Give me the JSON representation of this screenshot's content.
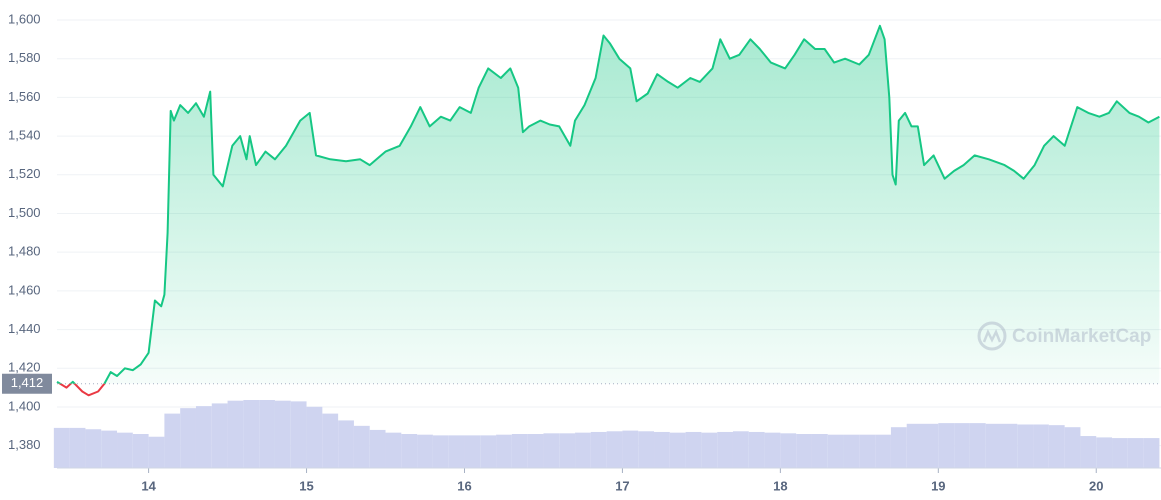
{
  "chart_data": {
    "type": "line",
    "watermark": "CoinMarketCap",
    "x": [
      13.42,
      13.48,
      13.52,
      13.58,
      13.62,
      13.68,
      13.72,
      13.76,
      13.8,
      13.85,
      13.9,
      13.95,
      14.0,
      14.04,
      14.08,
      14.1,
      14.12,
      14.14,
      14.16,
      14.2,
      14.25,
      14.3,
      14.35,
      14.39,
      14.41,
      14.47,
      14.53,
      14.58,
      14.62,
      14.64,
      14.68,
      14.74,
      14.8,
      14.87,
      14.96,
      15.02,
      15.06,
      15.15,
      15.25,
      15.34,
      15.4,
      15.5,
      15.59,
      15.66,
      15.72,
      15.78,
      15.85,
      15.91,
      15.97,
      16.04,
      16.09,
      16.15,
      16.23,
      16.29,
      16.34,
      16.37,
      16.41,
      16.48,
      16.54,
      16.6,
      16.67,
      16.7,
      16.76,
      16.83,
      16.88,
      16.92,
      16.98,
      17.05,
      17.09,
      17.16,
      17.22,
      17.29,
      17.35,
      17.43,
      17.49,
      17.57,
      17.62,
      17.68,
      17.74,
      17.81,
      17.87,
      17.94,
      18.03,
      18.09,
      18.15,
      18.22,
      18.28,
      18.34,
      18.41,
      18.5,
      18.56,
      18.63,
      18.66,
      18.69,
      18.71,
      18.73,
      18.75,
      18.79,
      18.83,
      18.87,
      18.91,
      18.97,
      19.04,
      19.1,
      19.16,
      19.23,
      19.32,
      19.42,
      19.48,
      19.54,
      19.61,
      19.67,
      19.73,
      19.8,
      19.88,
      19.95,
      20.02,
      20.08,
      20.13,
      20.21,
      20.27,
      20.33,
      20.4
    ],
    "series": [
      {
        "color": "#16c784",
        "below_color": "#ea3943",
        "values": [
          1413,
          1410,
          1413,
          1408,
          1406,
          1408,
          1412,
          1418,
          1416,
          1420,
          1419,
          1422,
          1428,
          1455,
          1452,
          1458,
          1490,
          1553,
          1548,
          1556,
          1552,
          1557,
          1550,
          1563,
          1520,
          1514,
          1535,
          1540,
          1528,
          1540,
          1525,
          1532,
          1528,
          1535,
          1548,
          1552,
          1530,
          1528,
          1527,
          1528,
          1525,
          1532,
          1535,
          1545,
          1555,
          1545,
          1550,
          1548,
          1555,
          1552,
          1565,
          1575,
          1570,
          1575,
          1565,
          1542,
          1545,
          1548,
          1546,
          1545,
          1535,
          1548,
          1556,
          1570,
          1592,
          1588,
          1580,
          1575,
          1558,
          1562,
          1572,
          1568,
          1565,
          1570,
          1568,
          1575,
          1590,
          1580,
          1582,
          1590,
          1585,
          1578,
          1575,
          1582,
          1590,
          1585,
          1585,
          1578,
          1580,
          1577,
          1582,
          1597,
          1590,
          1560,
          1520,
          1515,
          1548,
          1552,
          1545,
          1545,
          1525,
          1530,
          1518,
          1522,
          1525,
          1530,
          1528,
          1525,
          1522,
          1518,
          1525,
          1535,
          1540,
          1535,
          1555,
          1552,
          1550,
          1552,
          1558,
          1552,
          1550,
          1547,
          1550
        ]
      }
    ],
    "baseline": 1412,
    "baseline_label": "1,412",
    "volume": {
      "color": "#cfd4f0",
      "x": [
        13.45,
        13.55,
        13.65,
        13.75,
        13.85,
        13.95,
        14.05,
        14.15,
        14.25,
        14.35,
        14.45,
        14.55,
        14.65,
        14.75,
        14.85,
        14.95,
        15.05,
        15.15,
        15.25,
        15.35,
        15.45,
        15.55,
        15.65,
        15.75,
        15.85,
        15.95,
        16.05,
        16.15,
        16.25,
        16.35,
        16.45,
        16.55,
        16.65,
        16.75,
        16.85,
        16.95,
        17.05,
        17.15,
        17.25,
        17.35,
        17.45,
        17.55,
        17.65,
        17.75,
        17.85,
        17.95,
        18.05,
        18.15,
        18.25,
        18.35,
        18.45,
        18.55,
        18.65,
        18.75,
        18.85,
        18.95,
        19.05,
        19.15,
        19.25,
        19.35,
        19.45,
        19.55,
        19.65,
        19.75,
        19.85,
        19.95,
        20.05,
        20.15,
        20.25,
        20.35
      ],
      "values": [
        59,
        59,
        57,
        55,
        52,
        50,
        46,
        80,
        88,
        91,
        95,
        99,
        100,
        100,
        99,
        98,
        90,
        80,
        70,
        62,
        56,
        52,
        50,
        49,
        48,
        48,
        48,
        48,
        49,
        50,
        50,
        51,
        51,
        52,
        53,
        54,
        55,
        54,
        53,
        52,
        53,
        52,
        53,
        54,
        53,
        52,
        51,
        50,
        50,
        49,
        49,
        49,
        49,
        60,
        65,
        65,
        66,
        66,
        66,
        65,
        65,
        64,
        64,
        63,
        60,
        47,
        45,
        44,
        44,
        44
      ]
    },
    "xlim": [
      13.42,
      20.41
    ],
    "xticks": [
      14,
      15,
      16,
      17,
      18,
      19,
      20
    ],
    "ylim": [
      1370,
      1600
    ],
    "yticks": [
      {
        "value": 1380,
        "label": "1,380"
      },
      {
        "value": 1400,
        "label": "1,400"
      },
      {
        "value": 1420,
        "label": "1,420"
      },
      {
        "value": 1440,
        "label": "1,440"
      },
      {
        "value": 1460,
        "label": "1,460"
      },
      {
        "value": 1480,
        "label": "1,480"
      },
      {
        "value": 1500,
        "label": "1,500"
      },
      {
        "value": 1520,
        "label": "1,520"
      },
      {
        "value": 1540,
        "label": "1,540"
      },
      {
        "value": 1560,
        "label": "1,560"
      },
      {
        "value": 1580,
        "label": "1,580"
      },
      {
        "value": 1600,
        "label": "1,600"
      }
    ],
    "y2lim": [
      0,
      100
    ],
    "grid": true
  }
}
